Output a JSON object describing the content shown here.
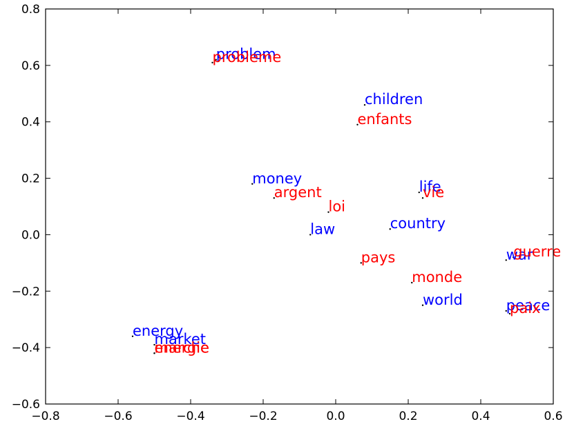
{
  "chart_data": {
    "type": "scatter",
    "title": "",
    "xlabel": "",
    "ylabel": "",
    "xlim": [
      -0.8,
      0.6
    ],
    "ylim": [
      -0.6,
      0.8
    ],
    "xticks": [
      -0.8,
      -0.6,
      -0.4,
      -0.2,
      0.0,
      0.2,
      0.4,
      0.6
    ],
    "yticks": [
      -0.6,
      -0.4,
      -0.2,
      0.0,
      0.2,
      0.4,
      0.6,
      0.8
    ],
    "xtick_labels": [
      "−0.8",
      "−0.6",
      "−0.4",
      "−0.2",
      "0.0",
      "0.2",
      "0.4",
      "0.6"
    ],
    "ytick_labels": [
      "−0.6",
      "−0.4",
      "−0.2",
      "0.0",
      "0.2",
      "0.4",
      "0.6",
      "0.8"
    ],
    "grid": false,
    "colors": {
      "english": "#0000ff",
      "french": "#ff0000",
      "point": "#000000"
    },
    "series": [
      {
        "color": "#0000ff",
        "points": [
          {
            "label": "problem",
            "x": -0.33,
            "y": 0.62
          },
          {
            "label": "children",
            "x": 0.08,
            "y": 0.46
          },
          {
            "label": "money",
            "x": -0.23,
            "y": 0.18
          },
          {
            "label": "life",
            "x": 0.23,
            "y": 0.15
          },
          {
            "label": "law",
            "x": -0.07,
            "y": 0.0
          },
          {
            "label": "country",
            "x": 0.15,
            "y": 0.02
          },
          {
            "label": "war",
            "x": 0.47,
            "y": -0.09
          },
          {
            "label": "world",
            "x": 0.24,
            "y": -0.25
          },
          {
            "label": "peace",
            "x": 0.47,
            "y": -0.27
          },
          {
            "label": "energy",
            "x": -0.56,
            "y": -0.36
          },
          {
            "label": "market",
            "x": -0.5,
            "y": -0.39
          }
        ]
      },
      {
        "color": "#ff0000",
        "points": [
          {
            "label": "probleme",
            "x": -0.34,
            "y": 0.61
          },
          {
            "label": "enfants",
            "x": 0.06,
            "y": 0.39
          },
          {
            "label": "argent",
            "x": -0.17,
            "y": 0.13
          },
          {
            "label": "vie",
            "x": 0.24,
            "y": 0.13
          },
          {
            "label": "loi",
            "x": -0.02,
            "y": 0.08
          },
          {
            "label": "pays",
            "x": 0.07,
            "y": -0.1
          },
          {
            "label": "guerre",
            "x": 0.49,
            "y": -0.08
          },
          {
            "label": "monde",
            "x": 0.21,
            "y": -0.17
          },
          {
            "label": "paix",
            "x": 0.48,
            "y": -0.28
          },
          {
            "label": "energie",
            "x": -0.5,
            "y": -0.42
          },
          {
            "label": "marche",
            "x": -0.5,
            "y": -0.42
          }
        ]
      }
    ]
  }
}
